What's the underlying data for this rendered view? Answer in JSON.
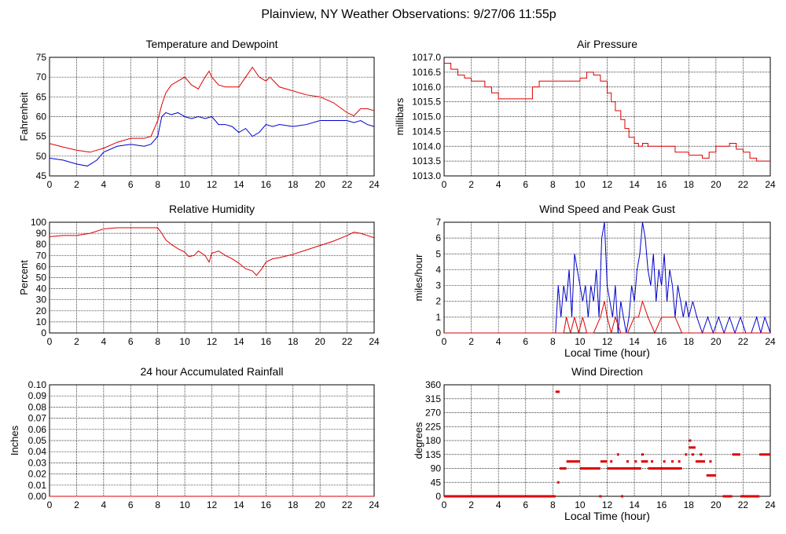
{
  "page_title": "Plainview, NY Weather Observations: 9/27/06 11:55p",
  "chart_data": [
    {
      "id": "temperature",
      "type": "line",
      "title": "Temperature and Dewpoint",
      "xlabel": "",
      "ylabel": "Fahrenheit",
      "xlim": [
        0,
        24
      ],
      "ylim": [
        45,
        75
      ],
      "xticks": [
        0,
        2,
        4,
        6,
        8,
        10,
        12,
        14,
        16,
        18,
        20,
        22,
        24
      ],
      "yticks": [
        45,
        50,
        55,
        60,
        65,
        70,
        75
      ],
      "grid": true,
      "series": [
        {
          "color": "#dd0000",
          "x": [
            0,
            1,
            2,
            3,
            4,
            5,
            6,
            7,
            7.5,
            8,
            8.3,
            8.6,
            9,
            9.5,
            10,
            10.5,
            11,
            11.5,
            11.8,
            12,
            12.5,
            13,
            14,
            14.5,
            15,
            15.5,
            16,
            16.3,
            17,
            18,
            19,
            20,
            21,
            22,
            22.5,
            23,
            23.5,
            24
          ],
          "y": [
            53.2,
            52.3,
            51.5,
            51,
            52,
            53.5,
            54.5,
            54.5,
            55,
            59,
            63,
            66,
            68,
            69,
            70,
            68,
            67,
            70,
            71.5,
            70,
            68,
            67.5,
            67.5,
            70,
            72.5,
            70,
            69,
            70,
            67.5,
            66.5,
            65.5,
            65,
            63.5,
            61,
            60.2,
            62,
            62,
            61.5
          ]
        },
        {
          "color": "#0000cc",
          "x": [
            0,
            1,
            2,
            2.8,
            3.5,
            4,
            5,
            6,
            7,
            7.5,
            8,
            8.3,
            8.6,
            9,
            9.5,
            10,
            10.5,
            11,
            11.5,
            12,
            12.5,
            13,
            13.5,
            14,
            14.5,
            15,
            15.5,
            16,
            16.5,
            17,
            18,
            19,
            20,
            21,
            22,
            22.5,
            23,
            23.5,
            24
          ],
          "y": [
            49.5,
            49,
            48,
            47.5,
            49,
            51,
            52.5,
            53,
            52.5,
            53,
            55,
            60,
            61,
            60.5,
            61,
            60,
            59.5,
            60,
            59.5,
            60,
            58,
            58,
            57.5,
            56,
            57,
            55,
            56,
            58,
            57.5,
            58,
            57.5,
            58,
            59,
            59,
            59,
            58.5,
            59,
            58,
            57.5
          ]
        }
      ]
    },
    {
      "id": "pressure",
      "type": "line",
      "title": "Air Pressure",
      "xlabel": "",
      "ylabel": "millibars",
      "xlim": [
        0,
        24
      ],
      "ylim": [
        1013.0,
        1017.0
      ],
      "xticks": [
        0,
        2,
        4,
        6,
        8,
        10,
        12,
        14,
        16,
        18,
        20,
        22,
        24
      ],
      "yticks": [
        "1013.0",
        "1013.5",
        "1014.0",
        "1014.5",
        "1015.0",
        "1015.5",
        "1016.0",
        "1016.5",
        "1017.0"
      ],
      "grid": true,
      "series": [
        {
          "color": "#dd0000",
          "step": true,
          "x": [
            0,
            0.5,
            1,
            1.5,
            2,
            3,
            3.5,
            4,
            5,
            6,
            6.5,
            7,
            8,
            9,
            10,
            10.5,
            11,
            11.5,
            12,
            12.3,
            12.6,
            13,
            13.3,
            13.6,
            14,
            14.3,
            14.6,
            15,
            16,
            17,
            18,
            19,
            19.5,
            20,
            21,
            21.5,
            22,
            22.5,
            23,
            24
          ],
          "y": [
            1016.8,
            1016.6,
            1016.4,
            1016.3,
            1016.2,
            1016.0,
            1015.8,
            1015.6,
            1015.6,
            1015.6,
            1016.0,
            1016.2,
            1016.2,
            1016.2,
            1016.3,
            1016.5,
            1016.4,
            1016.2,
            1015.8,
            1015.5,
            1015.2,
            1014.9,
            1014.6,
            1014.3,
            1014.1,
            1014.0,
            1014.1,
            1014.0,
            1014.0,
            1013.8,
            1013.7,
            1013.6,
            1013.8,
            1014.0,
            1014.1,
            1013.9,
            1013.8,
            1013.6,
            1013.5,
            1013.5
          ]
        }
      ]
    },
    {
      "id": "humidity",
      "type": "line",
      "title": "Relative Humidity",
      "xlabel": "",
      "ylabel": "Percent",
      "xlim": [
        0,
        24
      ],
      "ylim": [
        0,
        100
      ],
      "xticks": [
        0,
        2,
        4,
        6,
        8,
        10,
        12,
        14,
        16,
        18,
        20,
        22,
        24
      ],
      "yticks": [
        0,
        10,
        20,
        30,
        40,
        50,
        60,
        70,
        80,
        90,
        100
      ],
      "grid": true,
      "series": [
        {
          "color": "#dd0000",
          "x": [
            0,
            1,
            2,
            3,
            4,
            5,
            6,
            7,
            8,
            8.3,
            8.6,
            9,
            9.5,
            10,
            10.3,
            10.7,
            11,
            11.5,
            11.8,
            12,
            12.5,
            13,
            13.5,
            14,
            14.5,
            15,
            15.3,
            15.7,
            16,
            16.5,
            17,
            18,
            19,
            20,
            21,
            22,
            22.5,
            23,
            23.5,
            24
          ],
          "y": [
            87,
            88,
            88,
            90,
            94,
            95,
            95,
            95,
            95,
            90,
            84,
            80,
            76,
            73,
            69,
            70,
            74,
            70,
            64,
            72,
            74,
            70,
            67,
            63,
            58,
            56,
            52,
            58,
            64,
            67,
            68,
            71,
            75,
            79,
            83,
            88,
            91,
            90,
            88,
            86
          ]
        }
      ]
    },
    {
      "id": "wind_speed",
      "type": "line",
      "title": "Wind Speed and Peak Gust",
      "xlabel": "Local Time (hour)",
      "ylabel": "miles/hour",
      "xlim": [
        0,
        24
      ],
      "ylim": [
        0,
        7
      ],
      "xticks": [
        0,
        2,
        4,
        6,
        8,
        10,
        12,
        14,
        16,
        18,
        20,
        22,
        24
      ],
      "yticks": [
        0,
        1,
        2,
        3,
        4,
        5,
        6,
        7
      ],
      "grid": true,
      "series": [
        {
          "color": "#0000cc",
          "x": [
            0,
            8.2,
            8.4,
            8.6,
            8.8,
            9,
            9.2,
            9.4,
            9.6,
            9.8,
            10,
            10.2,
            10.4,
            10.6,
            10.8,
            11,
            11.2,
            11.4,
            11.6,
            11.8,
            12,
            12.2,
            12.4,
            12.6,
            12.8,
            13,
            13.2,
            13.4,
            13.6,
            13.8,
            14,
            14.2,
            14.4,
            14.6,
            14.8,
            15,
            15.2,
            15.4,
            15.6,
            15.8,
            16,
            16.2,
            16.4,
            16.6,
            16.8,
            17,
            17.2,
            17.4,
            17.6,
            17.8,
            18,
            18.3,
            18.6,
            19,
            19.4,
            19.8,
            20.2,
            20.6,
            21,
            21.4,
            21.8,
            22.2,
            22.6,
            23,
            23.3,
            23.6,
            24
          ],
          "y": [
            0,
            0,
            3,
            1,
            3,
            2,
            4,
            1,
            5,
            4,
            3,
            2,
            3,
            1,
            3,
            2,
            4,
            1,
            6,
            7,
            3,
            2,
            1,
            3,
            0,
            2,
            1,
            0,
            1,
            3,
            2,
            4,
            5,
            7,
            6,
            4,
            3,
            5,
            2,
            4,
            3,
            5,
            2,
            4,
            3,
            1,
            3,
            2,
            1,
            2,
            1,
            2,
            1,
            0,
            1,
            0,
            1,
            0,
            1,
            0,
            1,
            0,
            0,
            1,
            0,
            1,
            0
          ]
        },
        {
          "color": "#dd0000",
          "x": [
            0,
            8.8,
            9,
            9.3,
            9.6,
            9.9,
            10.2,
            10.5,
            11,
            11.5,
            11.8,
            12,
            12.3,
            12.6,
            13,
            13.5,
            14,
            14.3,
            14.6,
            15,
            15.5,
            16,
            16.5,
            17,
            17.5,
            18,
            24
          ],
          "y": [
            0,
            0,
            1,
            0,
            1,
            0,
            1,
            0,
            0,
            1,
            2,
            1,
            0,
            1,
            0,
            0,
            1,
            1,
            2,
            1,
            0,
            1,
            1,
            1,
            0,
            0,
            0
          ]
        }
      ]
    },
    {
      "id": "rainfall",
      "type": "line",
      "title": "24 hour Accumulated Rainfall",
      "xlabel": "",
      "ylabel": "Inches",
      "xlim": [
        0,
        24
      ],
      "ylim": [
        0,
        0.1
      ],
      "xticks": [
        0,
        2,
        4,
        6,
        8,
        10,
        12,
        14,
        16,
        18,
        20,
        22,
        24
      ],
      "yticks": [
        "0.00",
        "0.01",
        "0.02",
        "0.03",
        "0.04",
        "0.05",
        "0.06",
        "0.07",
        "0.08",
        "0.09",
        "0.10"
      ],
      "grid": true,
      "series": [
        {
          "color": "#dd0000",
          "x": [
            0,
            24
          ],
          "y": [
            0,
            0
          ]
        }
      ]
    },
    {
      "id": "wind_direction",
      "type": "scatter",
      "title": "Wind Direction",
      "xlabel": "Local Time (hour)",
      "ylabel": "degrees",
      "xlim": [
        0,
        24
      ],
      "ylim": [
        0,
        360
      ],
      "xticks": [
        0,
        2,
        4,
        6,
        8,
        10,
        12,
        14,
        16,
        18,
        20,
        22,
        24
      ],
      "yticks": [
        0,
        45,
        90,
        135,
        180,
        225,
        270,
        315,
        360
      ],
      "grid": true,
      "series": [
        {
          "color": "#dd0000",
          "segments": [
            {
              "x0": 0,
              "x1": 8.2,
              "y": 0
            },
            {
              "x0": 8.2,
              "x1": 8.5,
              "y": 337.5
            },
            {
              "x0": 8.5,
              "x1": 9,
              "y": 90
            },
            {
              "x0": 9,
              "x1": 10,
              "y": 112.5
            },
            {
              "x0": 10,
              "x1": 11.5,
              "y": 90
            },
            {
              "x0": 11.5,
              "x1": 12,
              "y": 112.5
            },
            {
              "x0": 12,
              "x1": 13,
              "y": 90
            },
            {
              "x0": 13,
              "x1": 14.5,
              "y": 90
            },
            {
              "x0": 14.5,
              "x1": 15,
              "y": 112.5
            },
            {
              "x0": 15,
              "x1": 17.5,
              "y": 90
            },
            {
              "x0": 18,
              "x1": 18.5,
              "y": 157.5
            },
            {
              "x0": 18.5,
              "x1": 19.2,
              "y": 112.5
            },
            {
              "x0": 19.3,
              "x1": 20,
              "y": 67.5
            },
            {
              "x0": 20.5,
              "x1": 21.2,
              "y": 0
            },
            {
              "x0": 21.2,
              "x1": 21.8,
              "y": 135
            },
            {
              "x0": 21.8,
              "x1": 23.2,
              "y": 0
            },
            {
              "x0": 23.2,
              "x1": 24,
              "y": 135
            }
          ],
          "points": [
            {
              "x": 8.4,
              "y": 45
            },
            {
              "x": 11.5,
              "y": 0
            },
            {
              "x": 12.3,
              "y": 112.5
            },
            {
              "x": 12.8,
              "y": 135
            },
            {
              "x": 13.1,
              "y": 0
            },
            {
              "x": 13.5,
              "y": 112.5
            },
            {
              "x": 14.1,
              "y": 112.5
            },
            {
              "x": 14.6,
              "y": 135
            },
            {
              "x": 15.3,
              "y": 112.5
            },
            {
              "x": 16.2,
              "y": 112.5
            },
            {
              "x": 16.8,
              "y": 112.5
            },
            {
              "x": 17.3,
              "y": 112.5
            },
            {
              "x": 17.8,
              "y": 135
            },
            {
              "x": 18.1,
              "y": 180
            },
            {
              "x": 18.3,
              "y": 135
            },
            {
              "x": 18.9,
              "y": 135
            },
            {
              "x": 19.6,
              "y": 112.5
            }
          ]
        }
      ]
    }
  ]
}
